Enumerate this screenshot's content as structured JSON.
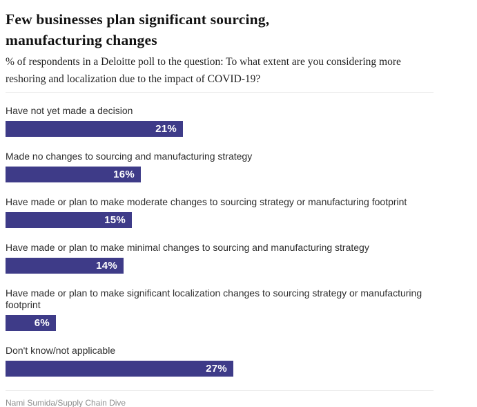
{
  "header": {
    "title": "Few businesses plan significant sourcing, manufacturing changes",
    "subtitle": "% of respondents in a Deloitte poll to the question: To what extent are you considering more reshoring and localization due to the impact of COVID-19?"
  },
  "chart_data": {
    "type": "bar",
    "orientation": "horizontal",
    "title": "Few businesses plan significant sourcing, manufacturing changes",
    "xlabel": "",
    "ylabel": "",
    "unit": "%",
    "xlim": [
      0,
      27
    ],
    "grid": false,
    "legend": false,
    "categories": [
      "Have not yet made a decision",
      "Made no changes to sourcing and manufacturing strategy",
      "Have made or plan to make moderate changes to sourcing strategy or manufacturing footprint",
      "Have made or plan to make minimal changes to sourcing and manufacturing strategy",
      "Have made or plan to make significant localization changes to sourcing strategy or manufacturing footprint",
      "Don't know/not applicable"
    ],
    "values": [
      21,
      16,
      15,
      14,
      6,
      27
    ],
    "value_labels": [
      "21%",
      "16%",
      "15%",
      "14%",
      "6%",
      "27%"
    ],
    "bar_color": "#3e3b88",
    "value_label_color": "#ffffff"
  },
  "footer": {
    "credit": "Nami Sumida/Supply Chain Dive"
  },
  "colors": {
    "bar": "#3e3b88",
    "rule": "#e7e7e7",
    "label_text": "#2e2e2e",
    "credit_text": "#8e8e8e"
  }
}
